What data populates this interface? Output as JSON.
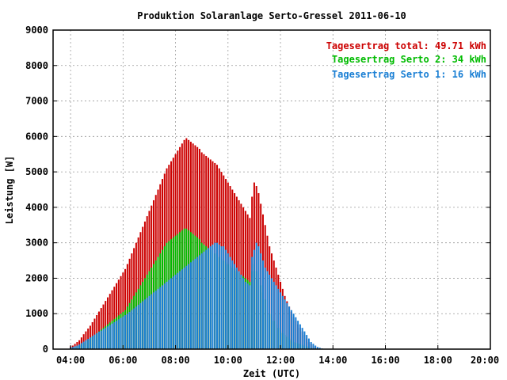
{
  "chart_data": {
    "type": "bar",
    "title": "Produktion Solaranlage Serto-Gressel 2011-06-10",
    "xlabel": "Zeit (UTC)",
    "ylabel": "Leistung [W]",
    "xlim": [
      3.333,
      20.0
    ],
    "ylim": [
      0,
      9000
    ],
    "x_ticks": [
      "04:00",
      "06:00",
      "08:00",
      "10:00",
      "12:00",
      "14:00",
      "16:00",
      "18:00",
      "20:00"
    ],
    "y_ticks": [
      "0",
      "1000",
      "2000",
      "3000",
      "4000",
      "5000",
      "6000",
      "7000",
      "8000",
      "9000"
    ],
    "grid": true,
    "stacked": true,
    "bar_interval_minutes": 5,
    "start_hour": 4.0,
    "legend": [
      {
        "label": "Tagesertrag total: 49.71 kWh",
        "color": "#cc0000"
      },
      {
        "label": "Tagesertrag Serto 2: 34 kWh",
        "color": "#00bb00"
      },
      {
        "label": "Tagesertrag Serto 1: 16 kWh",
        "color": "#1a7fd4"
      }
    ],
    "series": [
      {
        "name": "Serto 1",
        "color": "#1a7fd4",
        "values": [
          50,
          60,
          80,
          100,
          130,
          170,
          210,
          250,
          290,
          330,
          370,
          410,
          450,
          490,
          520,
          560,
          600,
          640,
          680,
          720,
          760,
          800,
          840,
          880,
          920,
          960,
          1000,
          1050,
          1100,
          1150,
          1200,
          1250,
          1300,
          1350,
          1400,
          1450,
          1500,
          1550,
          1600,
          1650,
          1700,
          1750,
          1800,
          1850,
          1900,
          1950,
          2000,
          2050,
          2100,
          2150,
          2200,
          2250,
          2300,
          2350,
          2400,
          2450,
          2500,
          2550,
          2600,
          2650,
          2700,
          2750,
          2800,
          2850,
          2900,
          2950,
          3000,
          3000,
          2950,
          2900,
          2900,
          2800,
          2700,
          2600,
          2500,
          2400,
          2300,
          2200,
          2100,
          2000,
          1900,
          1850,
          1800,
          2600,
          2800,
          3000,
          2900,
          2700,
          2500,
          2300,
          2200,
          2100,
          2000,
          1900,
          1800,
          1700,
          1600,
          1500,
          1400,
          1300,
          1200,
          1100,
          1000,
          900,
          800,
          700,
          600,
          500,
          400,
          300,
          200,
          150,
          100,
          60,
          40,
          20,
          10
        ]
      },
      {
        "name": "Serto 2",
        "color": "#00bb00",
        "values": [
          20,
          30,
          50,
          80,
          100,
          140,
          180,
          220,
          260,
          300,
          350,
          400,
          450,
          500,
          550,
          600,
          650,
          700,
          750,
          800,
          850,
          900,
          950,
          1000,
          1050,
          1100,
          1200,
          1300,
          1400,
          1500,
          1600,
          1700,
          1800,
          1900,
          2000,
          2100,
          2200,
          2300,
          2400,
          2500,
          2600,
          2700,
          2800,
          2900,
          3000,
          3050,
          3100,
          3150,
          3200,
          3250,
          3300,
          3350,
          3400,
          3400,
          3350,
          3300,
          3250,
          3200,
          3150,
          3100,
          3000,
          2950,
          2900,
          2850,
          2800,
          2750,
          2700,
          2650,
          2600,
          2550,
          2500,
          2450,
          2400,
          2350,
          2300,
          2250,
          2200,
          2150,
          2100,
          2050,
          2000,
          1950,
          1900,
          2200,
          2400,
          2200,
          2000,
          1800,
          1600,
          1400,
          1200,
          1000,
          900,
          800,
          700,
          600,
          500,
          450,
          400,
          350,
          300,
          250,
          200,
          180,
          160,
          140,
          120,
          100,
          80,
          60,
          40,
          30,
          20,
          10,
          5,
          0,
          0
        ]
      },
      {
        "name": "Total",
        "color": "#cc0000",
        "values": [
          80,
          100,
          150,
          200,
          250,
          330,
          420,
          500,
          580,
          660,
          760,
          860,
          960,
          1060,
          1160,
          1260,
          1360,
          1460,
          1560,
          1660,
          1760,
          1860,
          1960,
          2060,
          2160,
          2260,
          2400,
          2550,
          2700,
          2850,
          3000,
          3150,
          3300,
          3450,
          3600,
          3750,
          3900,
          4050,
          4200,
          4350,
          4500,
          4650,
          4800,
          4950,
          5100,
          5200,
          5300,
          5400,
          5500,
          5600,
          5700,
          5800,
          5900,
          5950,
          5900,
          5850,
          5800,
          5750,
          5700,
          5650,
          5550,
          5500,
          5450,
          5400,
          5350,
          5300,
          5250,
          5200,
          5100,
          5000,
          4900,
          4800,
          4700,
          4600,
          4500,
          4400,
          4300,
          4200,
          4100,
          4000,
          3900,
          3800,
          3700,
          4300,
          4700,
          4600,
          4400,
          4100,
          3800,
          3500,
          3200,
          2900,
          2700,
          2500,
          2300,
          2100,
          1900,
          1700,
          1500,
          1350,
          1200,
          1050,
          900,
          800,
          700,
          600,
          500,
          400,
          300,
          200,
          150,
          100,
          60,
          30,
          15
        ]
      }
    ]
  }
}
